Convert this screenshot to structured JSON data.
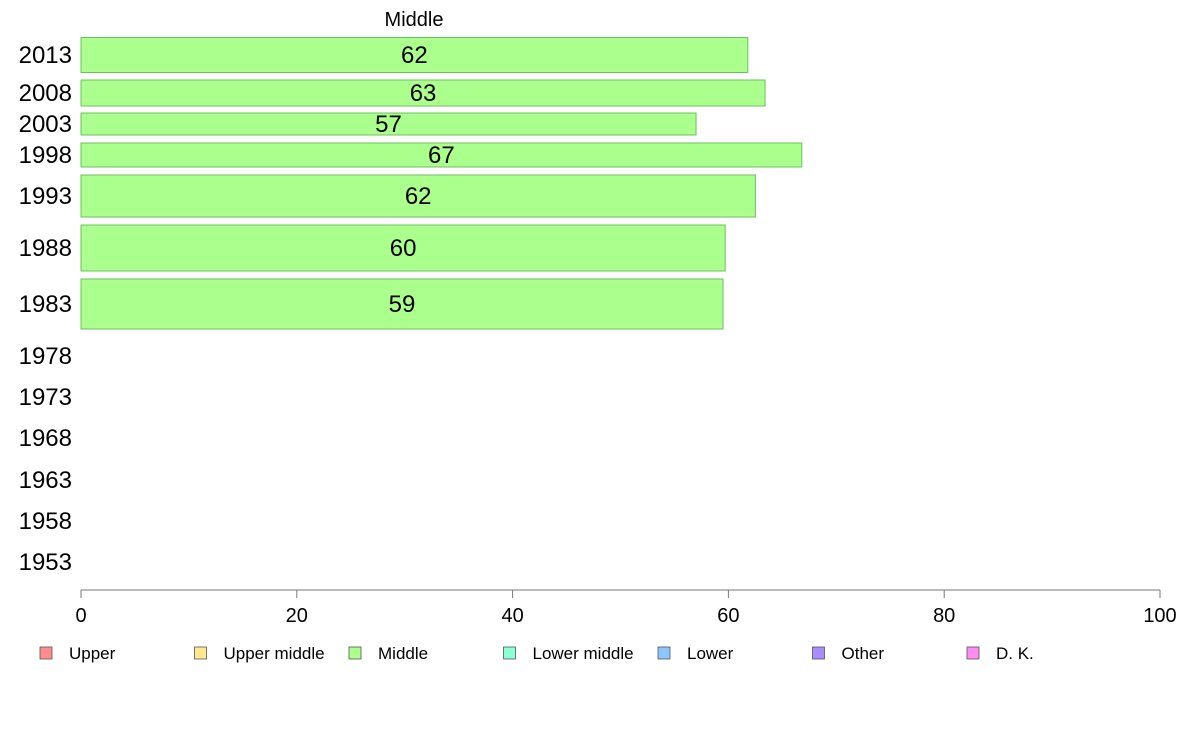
{
  "chart_data": {
    "type": "bar",
    "orientation": "horizontal",
    "title": "Middle",
    "categories": [
      "2013",
      "2008",
      "2003",
      "1998",
      "1993",
      "1988",
      "1983",
      "1978",
      "1973",
      "1968",
      "1963",
      "1958",
      "1953"
    ],
    "series": [
      {
        "name": "Middle",
        "color": "#aaff8d",
        "values": [
          61.8,
          63.4,
          57,
          66.8,
          62.5,
          59.7,
          59.5,
          null,
          null,
          null,
          null,
          null,
          null
        ],
        "labels": [
          "62",
          "63",
          "57",
          "67",
          "62",
          "60",
          "59",
          "",
          "",
          "",
          "",
          "",
          ""
        ]
      }
    ],
    "xlim": [
      0,
      100
    ],
    "xticks": [
      0,
      20,
      40,
      60,
      80,
      100
    ],
    "xtick_labels": [
      "0",
      "20",
      "40",
      "60",
      "80",
      "100"
    ],
    "grid": false,
    "legend_position": "bottom",
    "legend": [
      {
        "label": "Upper",
        "color": "#ff8d8d"
      },
      {
        "label": "Upper middle",
        "color": "#ffe88d"
      },
      {
        "label": "Middle",
        "color": "#aaff8d"
      },
      {
        "label": "Lower middle",
        "color": "#8dffd4"
      },
      {
        "label": "Lower",
        "color": "#8dc6ff"
      },
      {
        "label": "Other",
        "color": "#aa8dff"
      },
      {
        "label": "D. K.",
        "color": "#ff8df0"
      }
    ]
  }
}
